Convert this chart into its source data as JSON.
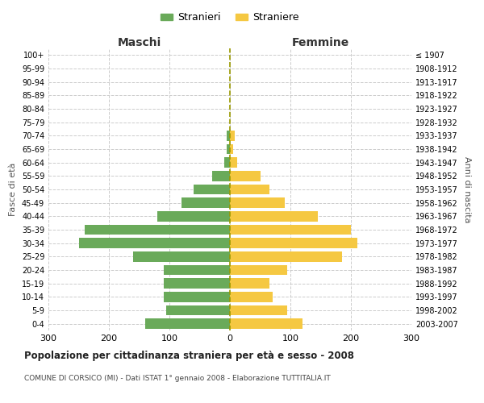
{
  "age_groups": [
    "0-4",
    "5-9",
    "10-14",
    "15-19",
    "20-24",
    "25-29",
    "30-34",
    "35-39",
    "40-44",
    "45-49",
    "50-54",
    "55-59",
    "60-64",
    "65-69",
    "70-74",
    "75-79",
    "80-84",
    "85-89",
    "90-94",
    "95-99",
    "100+"
  ],
  "birth_years": [
    "2003-2007",
    "1998-2002",
    "1993-1997",
    "1988-1992",
    "1983-1987",
    "1978-1982",
    "1973-1977",
    "1968-1972",
    "1963-1967",
    "1958-1962",
    "1953-1957",
    "1948-1952",
    "1943-1947",
    "1938-1942",
    "1933-1937",
    "1928-1932",
    "1923-1927",
    "1918-1922",
    "1913-1917",
    "1908-1912",
    "≤ 1907"
  ],
  "maschi": [
    140,
    105,
    110,
    110,
    110,
    160,
    250,
    240,
    120,
    80,
    60,
    30,
    10,
    5,
    5,
    0,
    0,
    0,
    0,
    0,
    0
  ],
  "femmine": [
    120,
    95,
    70,
    65,
    95,
    185,
    210,
    200,
    145,
    90,
    65,
    50,
    12,
    5,
    8,
    0,
    0,
    0,
    0,
    0,
    0
  ],
  "maschi_color": "#6aaa5a",
  "femmine_color": "#f5c842",
  "title": "Popolazione per cittadinanza straniera per età e sesso - 2008",
  "subtitle": "COMUNE DI CORSICO (MI) - Dati ISTAT 1° gennaio 2008 - Elaborazione TUTTITALIA.IT",
  "xlabel_left": "Maschi",
  "xlabel_right": "Femmine",
  "ylabel_left": "Fasce di età",
  "ylabel_right": "Anni di nascita",
  "legend_maschi": "Stranieri",
  "legend_femmine": "Straniere",
  "xlim": 300,
  "background_color": "#ffffff",
  "grid_color": "#cccccc"
}
